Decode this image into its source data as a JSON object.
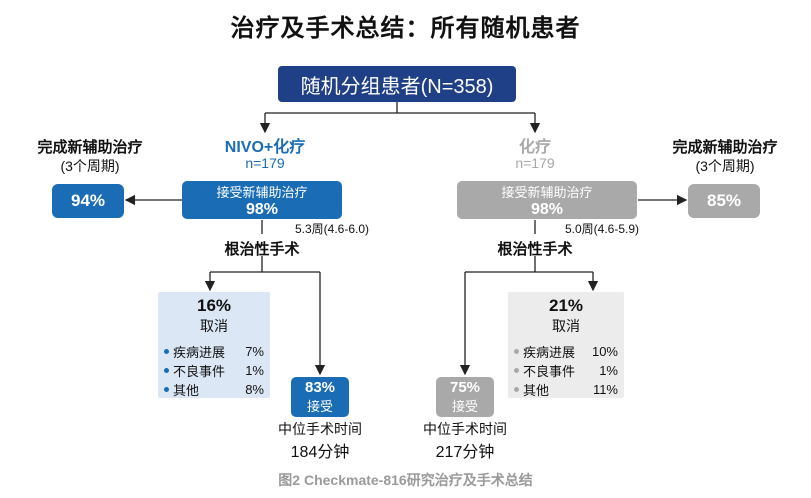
{
  "title": "治疗及手术总结：所有随机患者",
  "root": "随机分组患者(N=358)",
  "colors": {
    "nivo": "#1a6db5",
    "chemo": "#a9a9a9",
    "root": "#1f3f86",
    "blue_panel": "#dce7f5",
    "gray_panel": "#ececec"
  },
  "left": {
    "arm_title": "NIVO+化疗",
    "arm_n": "n=179",
    "side_title": "完成新辅助治疗",
    "side_sub": "(3个周期)",
    "side_pct": "94%",
    "received_label": "接受新辅助治疗",
    "received_pct": "98%",
    "duration": "5.3周(4.6-6.0)",
    "surgery": "根治性手术",
    "cancel_pct": "16%",
    "cancel_label": "取消",
    "reasons": [
      {
        "label": "疾病进展",
        "value": "7%"
      },
      {
        "label": "不良事件",
        "value": "1%"
      },
      {
        "label": "其他",
        "value": "8%"
      }
    ],
    "accept_pct": "83%",
    "accept_label": "接受",
    "median_label": "中位手术时间",
    "median_value": "184分钟"
  },
  "right": {
    "arm_title": "化疗",
    "arm_n": "n=179",
    "side_title": "完成新辅助治疗",
    "side_sub": "(3个周期)",
    "side_pct": "85%",
    "received_label": "接受新辅助治疗",
    "received_pct": "98%",
    "duration": "5.0周(4.6-5.9)",
    "surgery": "根治性手术",
    "cancel_pct": "21%",
    "cancel_label": "取消",
    "reasons": [
      {
        "label": "疾病进展",
        "value": "10%"
      },
      {
        "label": "不良事件",
        "value": "1%"
      },
      {
        "label": "其他",
        "value": "11%"
      }
    ],
    "accept_pct": "75%",
    "accept_label": "接受",
    "median_label": "中位手术时间",
    "median_value": "217分钟"
  },
  "caption": "图2 Checkmate-816研究治疗及手术总结"
}
